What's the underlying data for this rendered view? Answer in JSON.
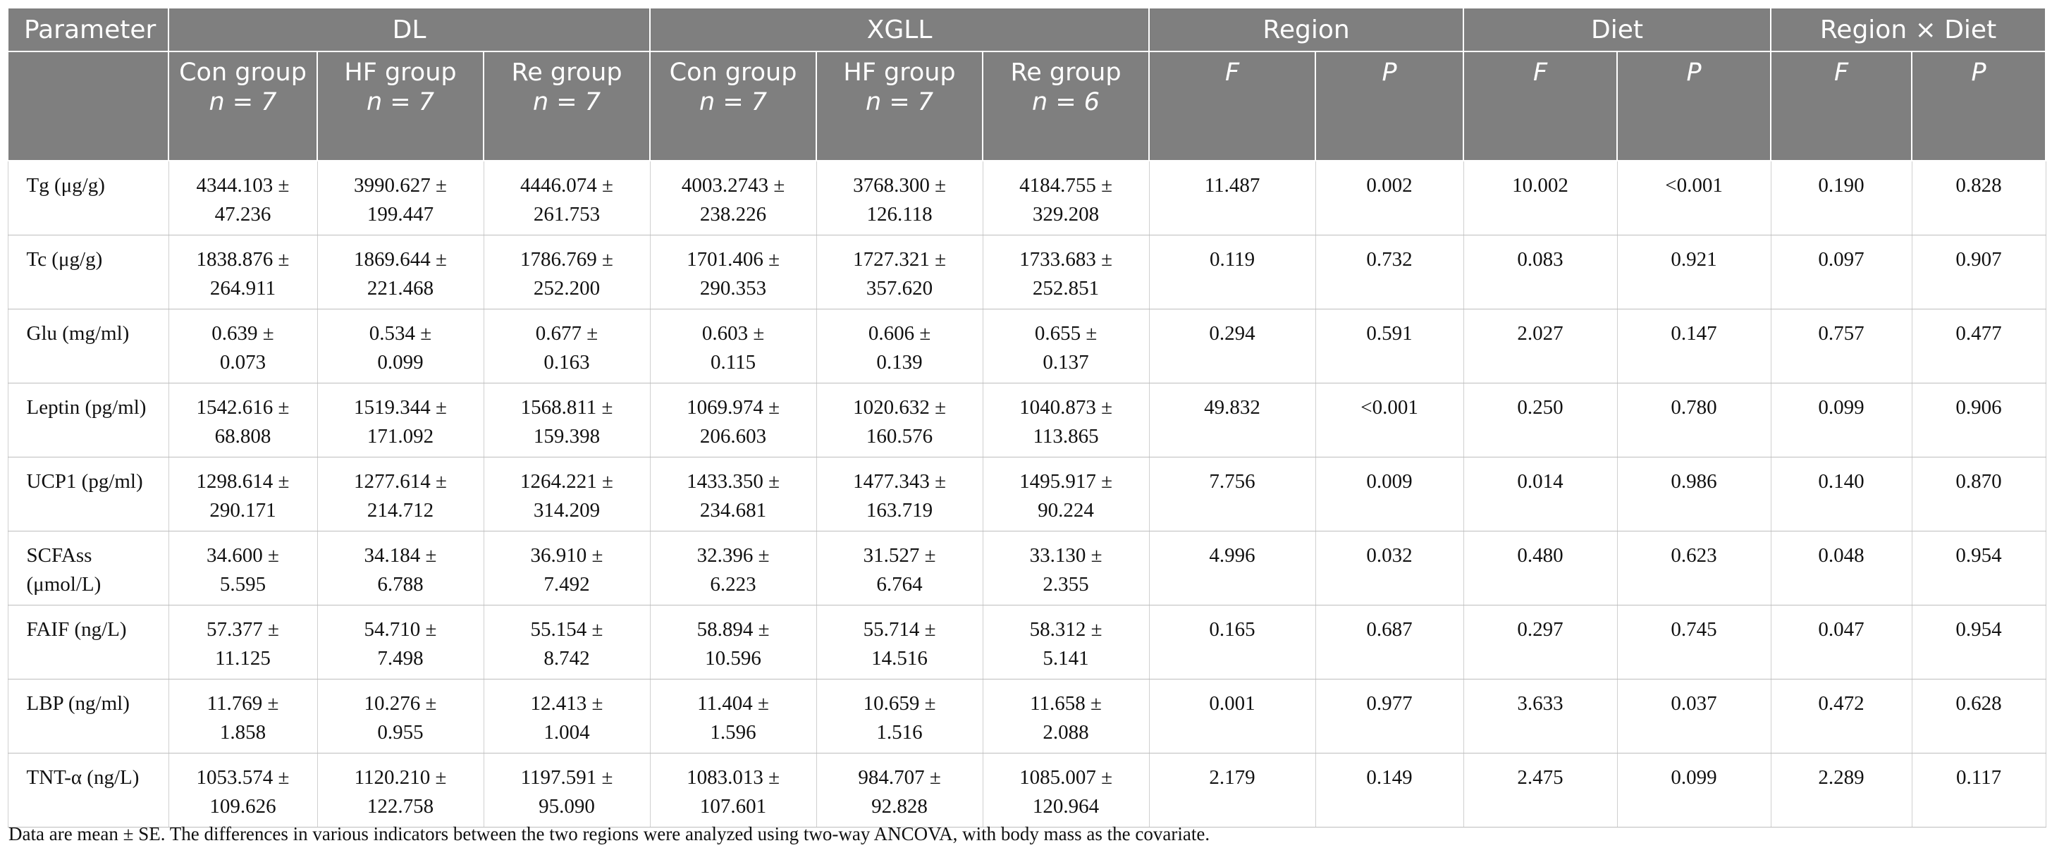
{
  "table": {
    "header_top": {
      "parameter": "Parameter",
      "dl": "DL",
      "xgll": "XGLL",
      "region": "Region",
      "diet": "Diet",
      "region_x_diet": "Region × Diet"
    },
    "header_sub": {
      "dl": [
        {
          "label": "Con group",
          "n": "n = 7"
        },
        {
          "label": "HF group",
          "n": "n = 7"
        },
        {
          "label": "Re group",
          "n": "n = 7"
        }
      ],
      "xgll": [
        {
          "label": "Con group",
          "n": "n = 7"
        },
        {
          "label": "HF group",
          "n": "n = 7"
        },
        {
          "label": "Re group",
          "n": "n = 6"
        }
      ],
      "f": "F",
      "p": "P"
    },
    "rows": [
      {
        "label": "Tg (μg/g)",
        "dl_con": [
          "4344.103 ±",
          "47.236"
        ],
        "dl_hf": [
          "3990.627 ±",
          "199.447"
        ],
        "dl_re": [
          "4446.074 ±",
          "261.753"
        ],
        "xg_con": [
          "4003.2743 ±",
          "238.226"
        ],
        "xg_hf": [
          "3768.300 ±",
          "126.118"
        ],
        "xg_re": [
          "4184.755 ±",
          "329.208"
        ],
        "region_f": "11.487",
        "region_p": "0.002",
        "diet_f": "10.002",
        "diet_p": "<0.001",
        "rxd_f": "0.190",
        "rxd_p": "0.828"
      },
      {
        "label": "Tc (μg/g)",
        "dl_con": [
          "1838.876 ±",
          "264.911"
        ],
        "dl_hf": [
          "1869.644 ±",
          "221.468"
        ],
        "dl_re": [
          "1786.769 ±",
          "252.200"
        ],
        "xg_con": [
          "1701.406 ±",
          "290.353"
        ],
        "xg_hf": [
          "1727.321 ±",
          "357.620"
        ],
        "xg_re": [
          "1733.683 ±",
          "252.851"
        ],
        "region_f": "0.119",
        "region_p": "0.732",
        "diet_f": "0.083",
        "diet_p": "0.921",
        "rxd_f": "0.097",
        "rxd_p": "0.907"
      },
      {
        "label": "Glu (mg/ml)",
        "dl_con": [
          "0.639 ±",
          "0.073"
        ],
        "dl_hf": [
          "0.534 ±",
          "0.099"
        ],
        "dl_re": [
          "0.677 ±",
          "0.163"
        ],
        "xg_con": [
          "0.603 ±",
          "0.115"
        ],
        "xg_hf": [
          "0.606 ±",
          "0.139"
        ],
        "xg_re": [
          "0.655 ±",
          "0.137"
        ],
        "region_f": "0.294",
        "region_p": "0.591",
        "diet_f": "2.027",
        "diet_p": "0.147",
        "rxd_f": "0.757",
        "rxd_p": "0.477"
      },
      {
        "label": "Leptin (pg/ml)",
        "dl_con": [
          "1542.616 ±",
          "68.808"
        ],
        "dl_hf": [
          "1519.344 ±",
          "171.092"
        ],
        "dl_re": [
          "1568.811 ±",
          "159.398"
        ],
        "xg_con": [
          "1069.974 ±",
          "206.603"
        ],
        "xg_hf": [
          "1020.632 ±",
          "160.576"
        ],
        "xg_re": [
          "1040.873 ±",
          "113.865"
        ],
        "region_f": "49.832",
        "region_p": "<0.001",
        "diet_f": "0.250",
        "diet_p": "0.780",
        "rxd_f": "0.099",
        "rxd_p": "0.906"
      },
      {
        "label": "UCP1 (pg/ml)",
        "dl_con": [
          "1298.614 ±",
          "290.171"
        ],
        "dl_hf": [
          "1277.614 ±",
          "214.712"
        ],
        "dl_re": [
          "1264.221 ±",
          "314.209"
        ],
        "xg_con": [
          "1433.350 ±",
          "234.681"
        ],
        "xg_hf": [
          "1477.343 ±",
          "163.719"
        ],
        "xg_re": [
          "1495.917 ±",
          "90.224"
        ],
        "region_f": "7.756",
        "region_p": "0.009",
        "diet_f": "0.014",
        "diet_p": "0.986",
        "rxd_f": "0.140",
        "rxd_p": "0.870"
      },
      {
        "label": "SCFAss (μmol/L)",
        "dl_con": [
          "34.600 ±",
          "5.595"
        ],
        "dl_hf": [
          "34.184 ±",
          "6.788"
        ],
        "dl_re": [
          "36.910 ±",
          "7.492"
        ],
        "xg_con": [
          "32.396 ±",
          "6.223"
        ],
        "xg_hf": [
          "31.527 ±",
          "6.764"
        ],
        "xg_re": [
          "33.130 ±",
          "2.355"
        ],
        "region_f": "4.996",
        "region_p": "0.032",
        "diet_f": "0.480",
        "diet_p": "0.623",
        "rxd_f": "0.048",
        "rxd_p": "0.954"
      },
      {
        "label": "FAIF (ng/L)",
        "dl_con": [
          "57.377 ±",
          "11.125"
        ],
        "dl_hf": [
          "54.710 ±",
          "7.498"
        ],
        "dl_re": [
          "55.154 ±",
          "8.742"
        ],
        "xg_con": [
          "58.894 ±",
          "10.596"
        ],
        "xg_hf": [
          "55.714 ±",
          "14.516"
        ],
        "xg_re": [
          "58.312 ±",
          "5.141"
        ],
        "region_f": "0.165",
        "region_p": "0.687",
        "diet_f": "0.297",
        "diet_p": "0.745",
        "rxd_f": "0.047",
        "rxd_p": "0.954"
      },
      {
        "label": "LBP (ng/ml)",
        "dl_con": [
          "11.769 ±",
          "1.858"
        ],
        "dl_hf": [
          "10.276 ±",
          "0.955"
        ],
        "dl_re": [
          "12.413 ±",
          "1.004"
        ],
        "xg_con": [
          "11.404 ±",
          "1.596"
        ],
        "xg_hf": [
          "10.659 ±",
          "1.516"
        ],
        "xg_re": [
          "11.658 ±",
          "2.088"
        ],
        "region_f": "0.001",
        "region_p": "0.977",
        "diet_f": "3.633",
        "diet_p": "0.037",
        "rxd_f": "0.472",
        "rxd_p": "0.628"
      },
      {
        "label": "TNT-α (ng/L)",
        "dl_con": [
          "1053.574 ±",
          "109.626"
        ],
        "dl_hf": [
          "1120.210 ±",
          "122.758"
        ],
        "dl_re": [
          "1197.591 ±",
          "95.090"
        ],
        "xg_con": [
          "1083.013 ±",
          "107.601"
        ],
        "xg_hf": [
          "984.707 ±",
          "92.828"
        ],
        "xg_re": [
          "1085.007 ±",
          "120.964"
        ],
        "region_f": "2.179",
        "region_p": "0.149",
        "diet_f": "2.475",
        "diet_p": "0.099",
        "rxd_f": "2.289",
        "rxd_p": "0.117"
      }
    ],
    "footnote": "Data are mean ± SE. The differences in various indicators between the two regions were analyzed using two-way ANCOVA, with body mass as the covariate."
  }
}
